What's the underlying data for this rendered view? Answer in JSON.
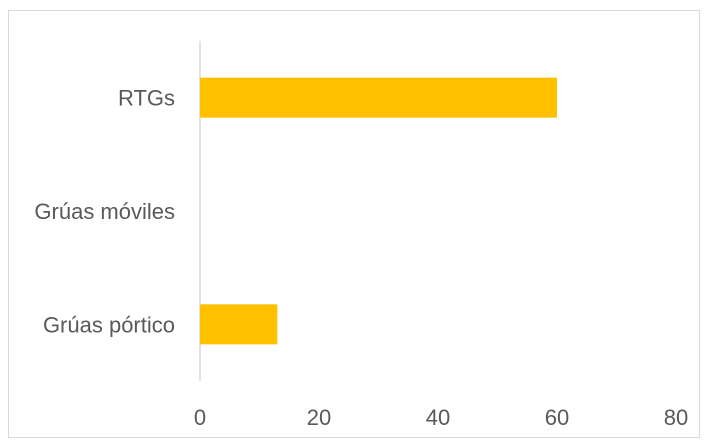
{
  "chart_data": {
    "type": "bar",
    "orientation": "horizontal",
    "categories": [
      "RTGs",
      "Grúas móviles",
      "Grúas pórtico"
    ],
    "values": [
      60,
      0,
      13
    ],
    "title": "",
    "xlabel": "",
    "ylabel": "",
    "xlim": [
      0,
      80
    ],
    "x_ticks": [
      "0",
      "20",
      "40",
      "60",
      "80"
    ],
    "grid": false,
    "legend": "none",
    "bar_color": "#FFC000",
    "axis_color": "#D9D9D9",
    "label_color": "#595959"
  }
}
